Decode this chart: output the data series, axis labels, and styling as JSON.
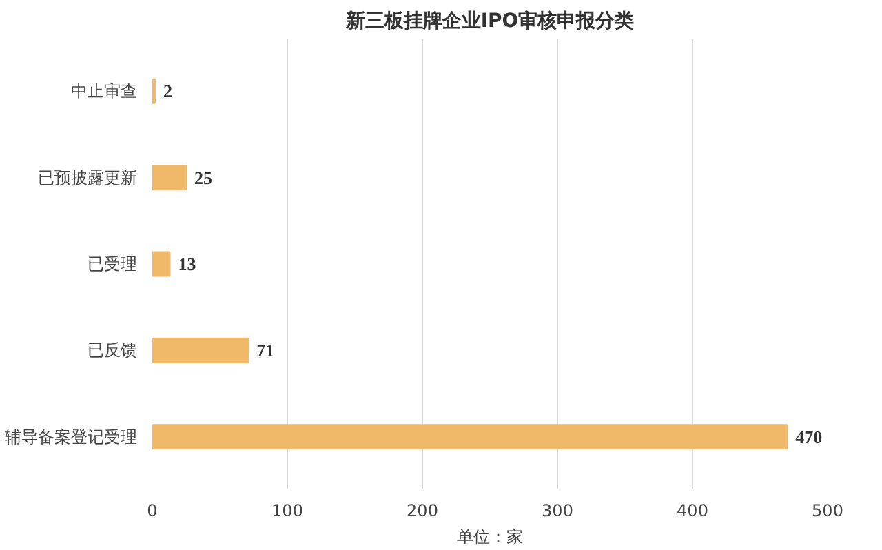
{
  "chart_data": {
    "type": "bar",
    "orientation": "horizontal",
    "title": "新三板挂牌企业IPO审核申报分类",
    "xlabel": "单位：家",
    "categories": [
      "中止审查",
      "已预披露更新",
      "已受理",
      "已反馈",
      "辅导备案登记受理"
    ],
    "values": [
      2,
      25,
      13,
      71,
      470
    ],
    "color": "#f0b96a",
    "data_labels": true,
    "xlim": [
      0,
      500
    ],
    "xticks": [
      0,
      100,
      200,
      300,
      400,
      500
    ],
    "grid": "x"
  }
}
